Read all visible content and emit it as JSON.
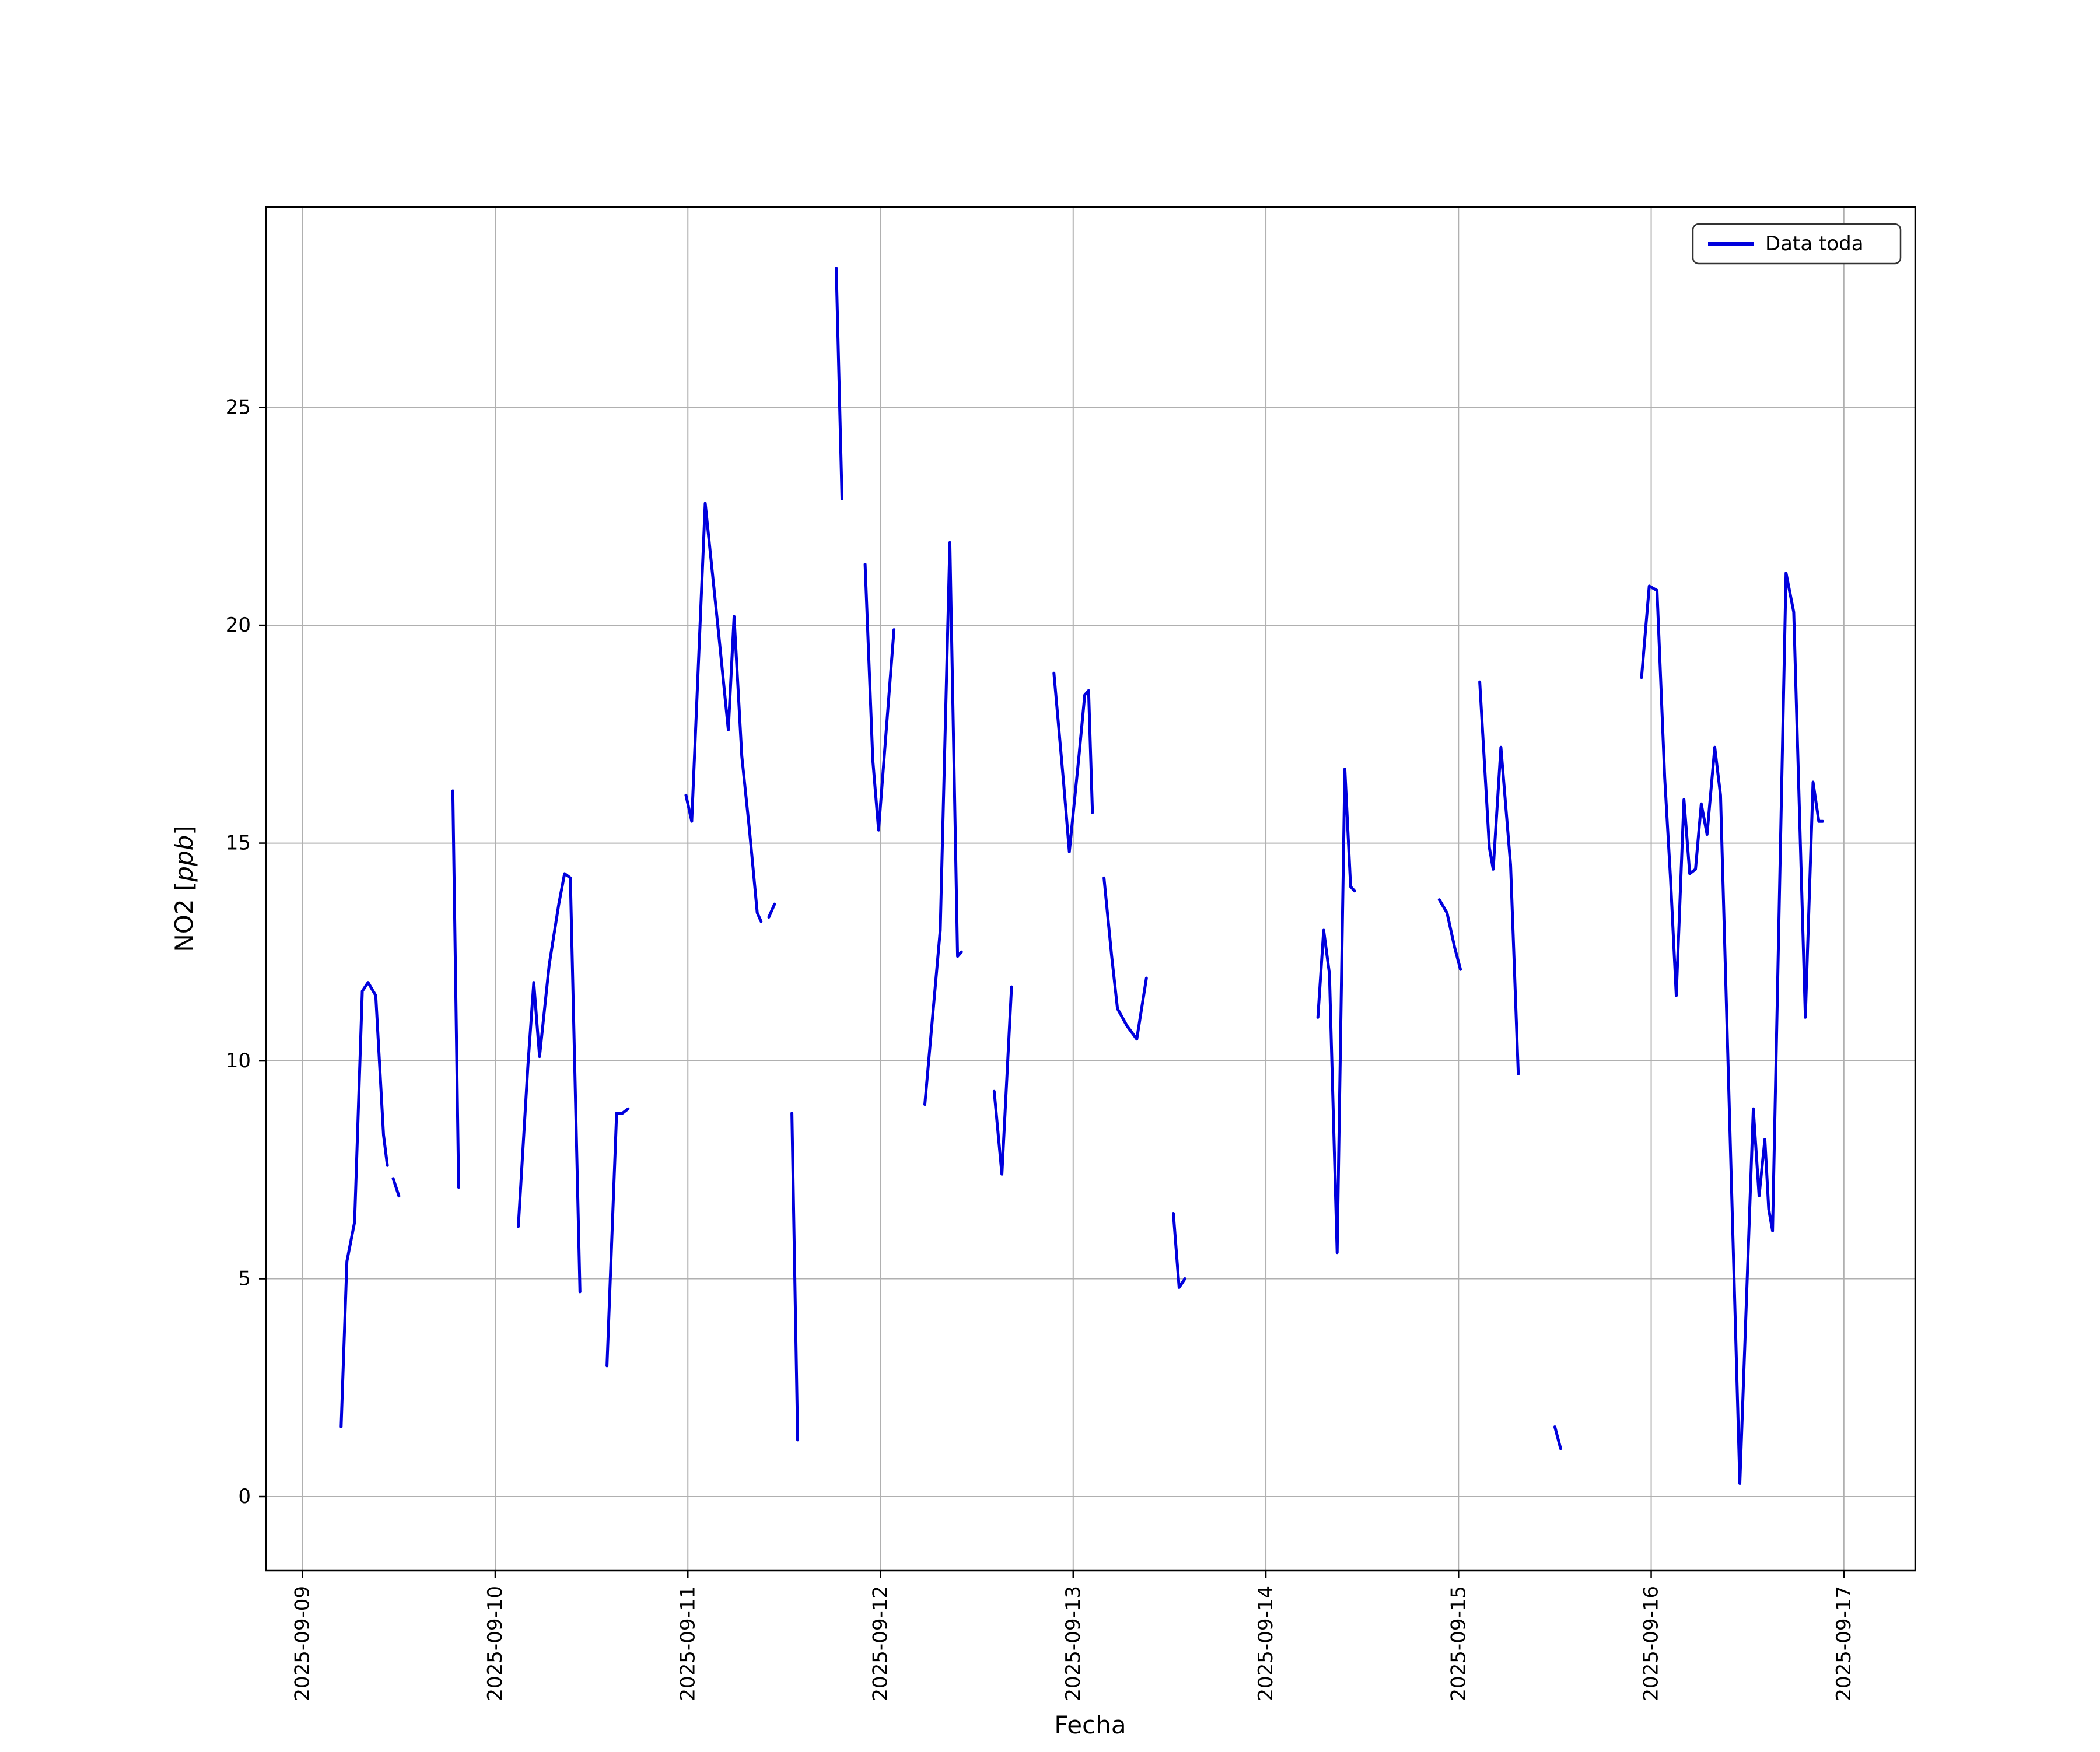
{
  "figure": {
    "xlabel": "Fecha",
    "ylabel_parts": {
      "prefix": "NO2 [",
      "italic": "ppb",
      "suffix": "]"
    },
    "legend": {
      "label": "Data toda"
    }
  },
  "chart_data": {
    "type": "line",
    "title": "",
    "xlabel": "Fecha",
    "ylabel": "NO2 [ppb]",
    "legend_entries": [
      "Data toda"
    ],
    "legend_position": "upper right",
    "grid": true,
    "colors": {
      "line": "#0000dd",
      "grid": "#b0b0b0",
      "spine": "#000000",
      "background": "#ffffff",
      "legend_border": "#333333"
    },
    "x_unit": "days since 2025-09-09 00:00",
    "x_tick_labels": [
      "2025-09-09",
      "2025-09-10",
      "2025-09-11",
      "2025-09-12",
      "2025-09-13",
      "2025-09-14",
      "2025-09-15",
      "2025-09-16",
      "2025-09-17"
    ],
    "y_ticks": [
      0,
      5,
      10,
      15,
      20,
      25
    ],
    "xlim": [
      -0.19,
      8.37
    ],
    "ylim": [
      -1.7,
      29.6
    ],
    "series": [
      {
        "name": "Data toda",
        "points": [
          [
            0.2,
            1.6
          ],
          [
            0.23,
            5.4
          ],
          [
            0.27,
            6.3
          ],
          [
            0.31,
            11.6
          ],
          [
            0.34,
            11.8
          ],
          [
            0.38,
            11.5
          ],
          [
            0.42,
            8.3
          ],
          [
            0.44,
            7.6
          ],
          null,
          [
            0.47,
            7.3
          ],
          [
            0.5,
            6.9
          ],
          null,
          [
            0.78,
            16.2
          ],
          [
            0.81,
            7.1
          ],
          null,
          [
            1.12,
            6.2
          ],
          [
            1.17,
            9.9
          ],
          [
            1.2,
            11.8
          ],
          [
            1.23,
            10.1
          ],
          [
            1.28,
            12.2
          ],
          [
            1.33,
            13.6
          ],
          [
            1.36,
            14.3
          ],
          [
            1.39,
            14.2
          ],
          [
            1.44,
            4.7
          ],
          null,
          [
            1.58,
            3.0
          ],
          [
            1.63,
            8.8
          ],
          [
            1.66,
            8.8
          ],
          [
            1.69,
            8.9
          ],
          null,
          [
            1.99,
            16.1
          ],
          [
            2.02,
            15.5
          ],
          [
            2.09,
            22.8
          ],
          [
            2.16,
            19.8
          ],
          [
            2.21,
            17.6
          ],
          [
            2.24,
            20.2
          ],
          [
            2.28,
            17.0
          ],
          [
            2.32,
            15.3
          ],
          [
            2.36,
            13.4
          ],
          [
            2.38,
            13.2
          ],
          null,
          [
            2.42,
            13.3
          ],
          [
            2.45,
            13.6
          ],
          null,
          [
            2.54,
            8.8
          ],
          [
            2.57,
            1.3
          ],
          null,
          [
            2.77,
            28.2
          ],
          [
            2.8,
            22.9
          ],
          null,
          [
            2.92,
            21.4
          ],
          [
            2.96,
            16.9
          ],
          [
            2.99,
            15.3
          ],
          [
            3.07,
            19.9
          ],
          null,
          [
            3.23,
            9.0
          ],
          [
            3.28,
            11.5
          ],
          [
            3.31,
            13.0
          ],
          [
            3.36,
            21.9
          ],
          [
            3.4,
            12.4
          ],
          [
            3.42,
            12.5
          ],
          null,
          [
            3.59,
            9.3
          ],
          [
            3.63,
            7.4
          ],
          [
            3.68,
            11.7
          ],
          null,
          [
            3.9,
            18.9
          ],
          [
            3.95,
            16.4
          ],
          [
            3.98,
            14.8
          ],
          [
            4.03,
            17.0
          ],
          [
            4.06,
            18.4
          ],
          [
            4.08,
            18.5
          ],
          [
            4.1,
            15.7
          ],
          null,
          [
            4.16,
            14.2
          ],
          [
            4.2,
            12.4
          ],
          [
            4.23,
            11.2
          ],
          [
            4.28,
            10.8
          ],
          [
            4.33,
            10.5
          ],
          [
            4.38,
            11.9
          ],
          null,
          [
            4.52,
            6.5
          ],
          [
            4.55,
            4.8
          ],
          [
            4.58,
            5.0
          ],
          null,
          [
            5.27,
            11.0
          ],
          [
            5.3,
            13.0
          ],
          [
            5.33,
            12.0
          ],
          [
            5.37,
            5.6
          ],
          [
            5.41,
            16.7
          ],
          [
            5.44,
            14.0
          ],
          [
            5.46,
            13.9
          ],
          null,
          [
            5.9,
            13.7
          ],
          [
            5.94,
            13.4
          ],
          [
            5.98,
            12.6
          ],
          [
            6.01,
            12.1
          ],
          null,
          [
            6.11,
            18.7
          ],
          [
            6.16,
            14.9
          ],
          [
            6.18,
            14.4
          ],
          [
            6.22,
            17.2
          ],
          [
            6.27,
            14.5
          ],
          [
            6.31,
            9.7
          ],
          null,
          [
            6.5,
            1.6
          ],
          [
            6.53,
            1.1
          ],
          null,
          [
            6.95,
            18.8
          ],
          [
            6.99,
            20.9
          ],
          [
            7.03,
            20.8
          ],
          [
            7.07,
            16.5
          ],
          [
            7.1,
            14.2
          ],
          [
            7.13,
            11.5
          ],
          [
            7.17,
            16.0
          ],
          [
            7.2,
            14.3
          ],
          [
            7.23,
            14.4
          ],
          [
            7.26,
            15.9
          ],
          [
            7.29,
            15.2
          ],
          [
            7.33,
            17.2
          ],
          [
            7.36,
            16.1
          ],
          [
            7.46,
            0.3
          ],
          [
            7.53,
            8.9
          ],
          [
            7.56,
            6.9
          ],
          [
            7.59,
            8.2
          ],
          [
            7.61,
            6.6
          ],
          [
            7.63,
            6.1
          ],
          [
            7.7,
            21.2
          ],
          [
            7.74,
            20.3
          ],
          [
            7.8,
            11.0
          ],
          [
            7.84,
            16.4
          ],
          [
            7.87,
            15.5
          ],
          [
            7.89,
            15.5
          ]
        ]
      }
    ]
  }
}
